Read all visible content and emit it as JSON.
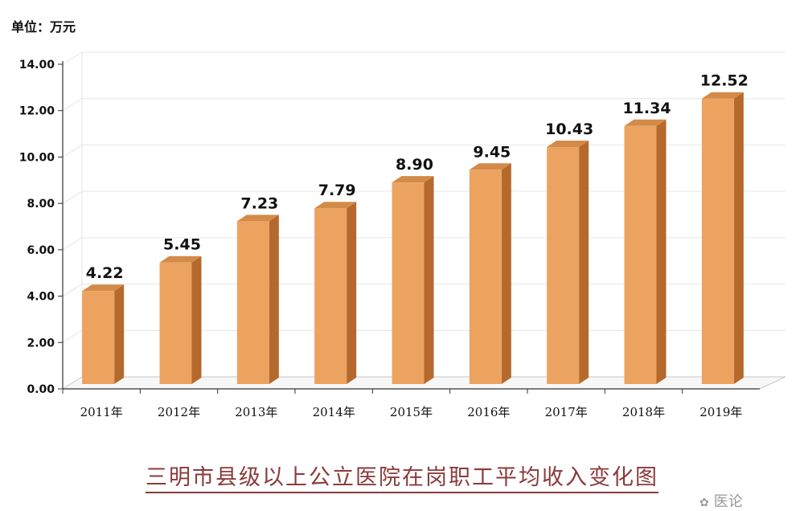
{
  "unit_label": "单位：万元",
  "caption": "三明市县级以上公立医院在岗职工平均收入变化图",
  "watermark": "医论",
  "colors": {
    "bar_front": "#eba35f",
    "bar_side": "#b5692c",
    "bar_top": "#d48a48",
    "grid": "#e6e6e6",
    "axis": "#333333",
    "caption": "#8b3a3a"
  },
  "chart_data": {
    "type": "bar",
    "categories": [
      "2011年",
      "2012年",
      "2013年",
      "2014年",
      "2015年",
      "2016年",
      "2017年",
      "2018年",
      "2019年"
    ],
    "values": [
      4.22,
      5.45,
      7.23,
      7.79,
      8.9,
      9.45,
      10.43,
      11.34,
      12.52
    ],
    "data_labels": [
      "4.22",
      "5.45",
      "7.23",
      "7.79",
      "8.90",
      "9.45",
      "10.43",
      "11.34",
      "12.52"
    ],
    "y_ticks": [
      "0.00",
      "2.00",
      "4.00",
      "6.00",
      "8.00",
      "10.00",
      "12.00",
      "14.00"
    ],
    "ylim": [
      0,
      14
    ],
    "title": "三明市县级以上公立医院在岗职工平均收入变化图",
    "xlabel": "",
    "ylabel": "万元",
    "grid": true,
    "legend": "none",
    "style": "3d-bar"
  }
}
